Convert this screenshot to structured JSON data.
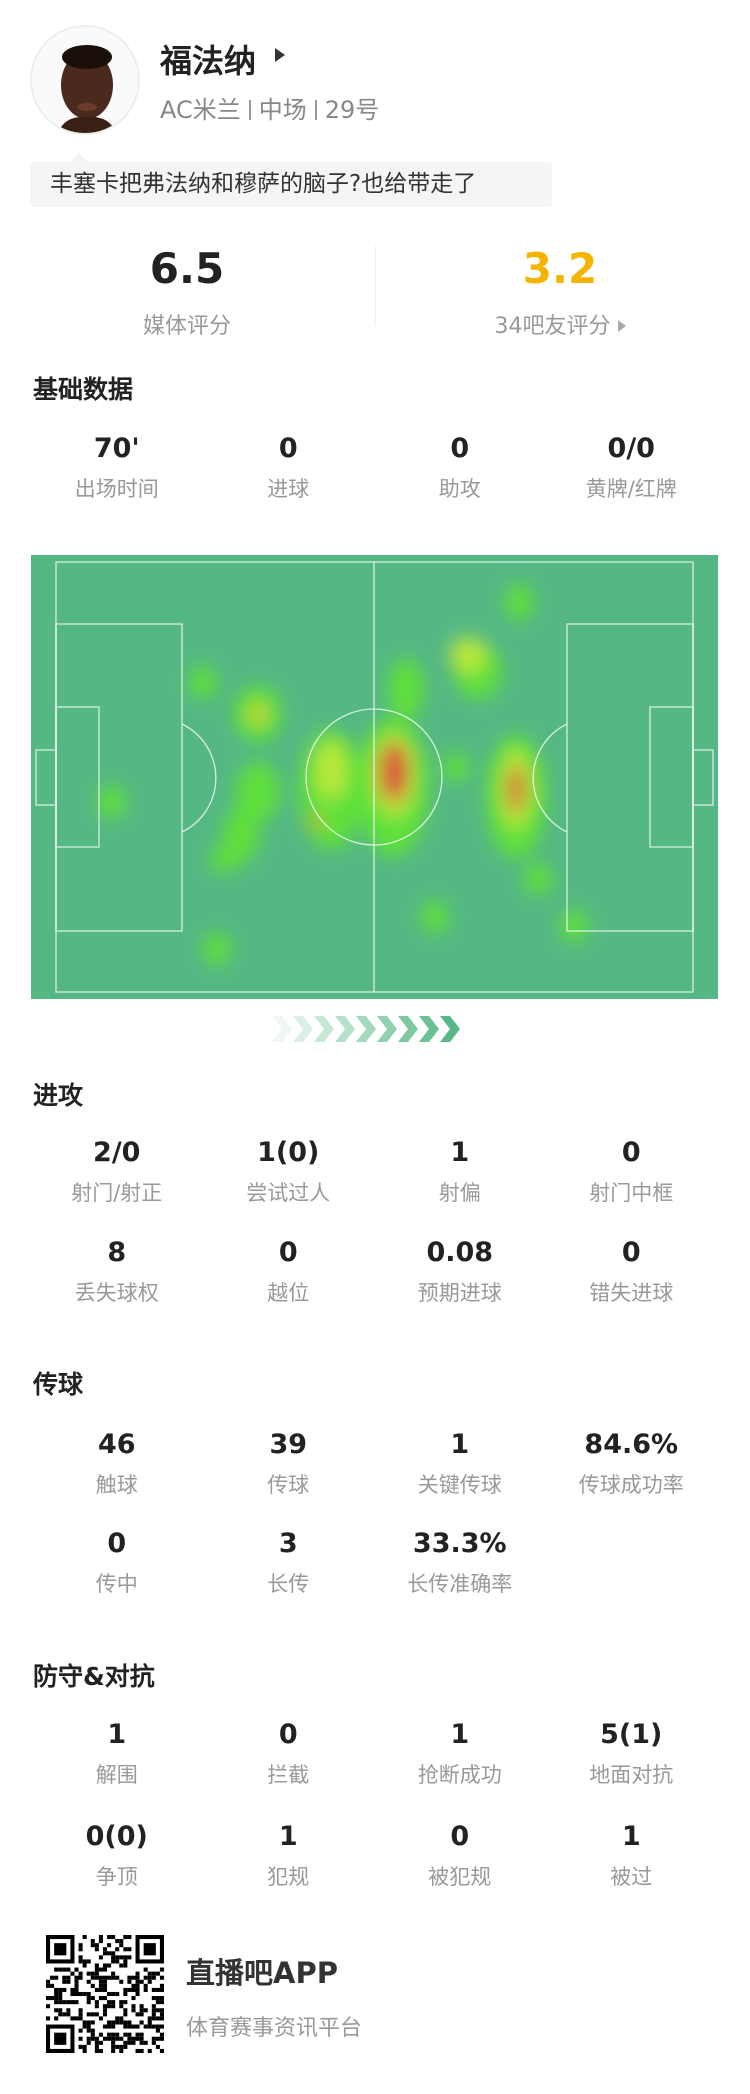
{
  "player": {
    "name": "福法纳",
    "team": "AC米兰",
    "position": "中场",
    "number": "29号"
  },
  "comment": "丰塞卡把弗法纳和穆萨的脑子?也给带走了",
  "ratings": {
    "media": {
      "value": "6.5",
      "label": "媒体评分"
    },
    "fans": {
      "value": "3.2",
      "label": "34吧友评分",
      "color": "#f5b400"
    }
  },
  "basic": {
    "title": "基础数据",
    "stats": [
      {
        "value": "70'",
        "label": "出场时间"
      },
      {
        "value": "0",
        "label": "进球"
      },
      {
        "value": "0",
        "label": "助攻"
      },
      {
        "value": "0/0",
        "label": "黄牌/红牌"
      }
    ]
  },
  "heatmap": {
    "pitch_color": "#55b884",
    "direction_icon": "chevrons-right-icon"
  },
  "attack": {
    "title": "进攻",
    "rows": [
      [
        {
          "value": "2/0",
          "label": "射门/射正"
        },
        {
          "value": "1(0)",
          "label": "尝试过人"
        },
        {
          "value": "1",
          "label": "射偏"
        },
        {
          "value": "0",
          "label": "射门中框"
        }
      ],
      [
        {
          "value": "8",
          "label": "丢失球权"
        },
        {
          "value": "0",
          "label": "越位"
        },
        {
          "value": "0.08",
          "label": "预期进球"
        },
        {
          "value": "0",
          "label": "错失进球"
        }
      ]
    ]
  },
  "passing": {
    "title": "传球",
    "rows": [
      [
        {
          "value": "46",
          "label": "触球"
        },
        {
          "value": "39",
          "label": "传球"
        },
        {
          "value": "1",
          "label": "关键传球"
        },
        {
          "value": "84.6%",
          "label": "传球成功率"
        }
      ],
      [
        {
          "value": "0",
          "label": "传中"
        },
        {
          "value": "3",
          "label": "长传"
        },
        {
          "value": "33.3%",
          "label": "长传准确率"
        }
      ]
    ]
  },
  "defense": {
    "title": "防守&对抗",
    "rows": [
      [
        {
          "value": "1",
          "label": "解围"
        },
        {
          "value": "0",
          "label": "拦截"
        },
        {
          "value": "1",
          "label": "抢断成功"
        },
        {
          "value": "5(1)",
          "label": "地面对抗"
        }
      ],
      [
        {
          "value": "0(0)",
          "label": "争顶"
        },
        {
          "value": "1",
          "label": "犯规"
        },
        {
          "value": "0",
          "label": "被犯规"
        },
        {
          "value": "1",
          "label": "被过"
        }
      ]
    ]
  },
  "footer": {
    "app_name": "直播吧APP",
    "tagline": "体育赛事资讯平台"
  }
}
